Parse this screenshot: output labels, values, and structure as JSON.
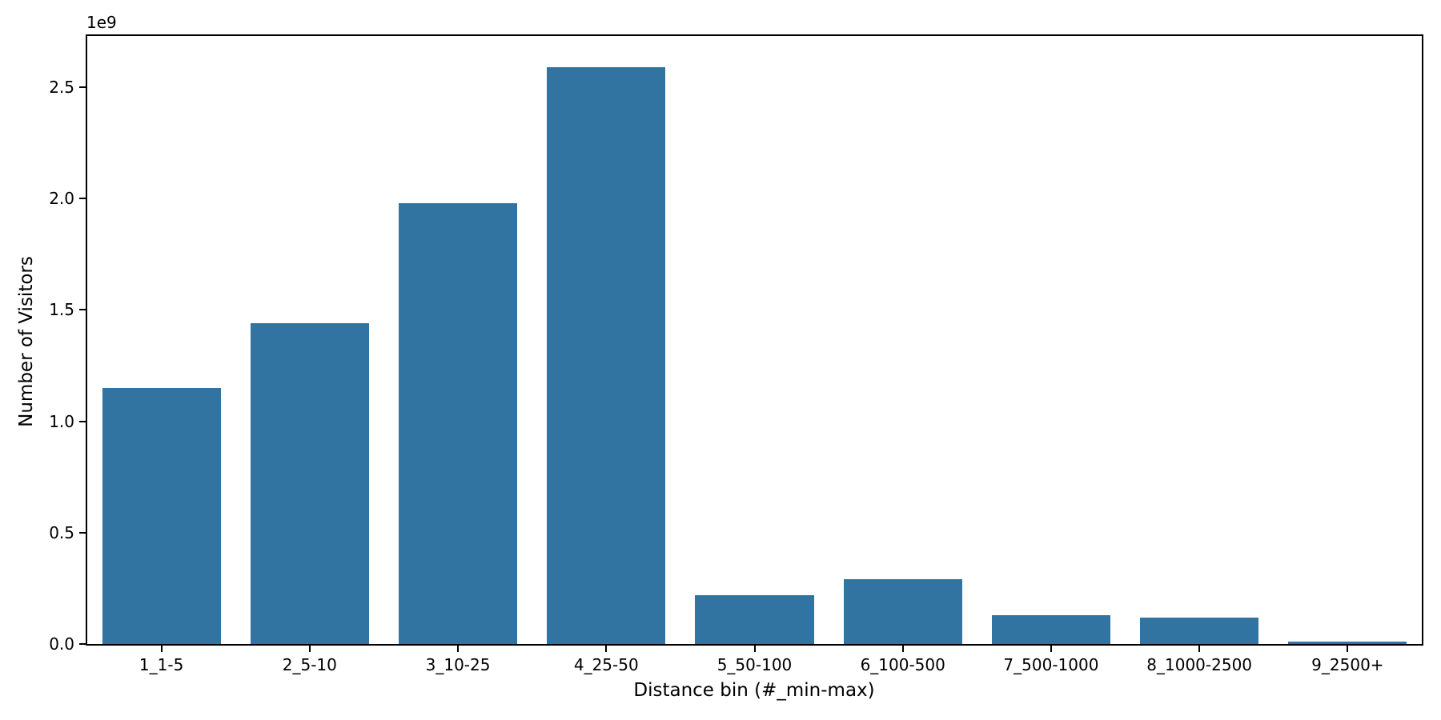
{
  "figure": {
    "background": "#ffffff",
    "text_color": "#000000",
    "spine_color": "#000000"
  },
  "chart_data": {
    "type": "bar",
    "title": "",
    "xlabel": "Distance bin (#_min-max)",
    "ylabel": "Number of Visitors",
    "offset_text": "1e9",
    "categories": [
      "1_1-5",
      "2_5-10",
      "3_10-25",
      "4_25-50",
      "5_50-100",
      "6_100-500",
      "7_500-1000",
      "8_1000-2500",
      "9_2500+"
    ],
    "values": [
      1150000000,
      1440000000,
      1980000000,
      2590000000,
      220000000,
      290000000,
      130000000,
      120000000,
      10000000
    ],
    "bar_color": "#3274a1",
    "bar_width_fraction": 0.8,
    "y_ticks": [
      0,
      500000000,
      1000000000,
      1500000000,
      2000000000,
      2500000000
    ],
    "y_tick_labels": [
      "0.0",
      "0.5",
      "1.0",
      "1.5",
      "2.0",
      "2.5"
    ],
    "ylim": [
      0,
      2730000000
    ],
    "grid": false,
    "legend": null
  }
}
